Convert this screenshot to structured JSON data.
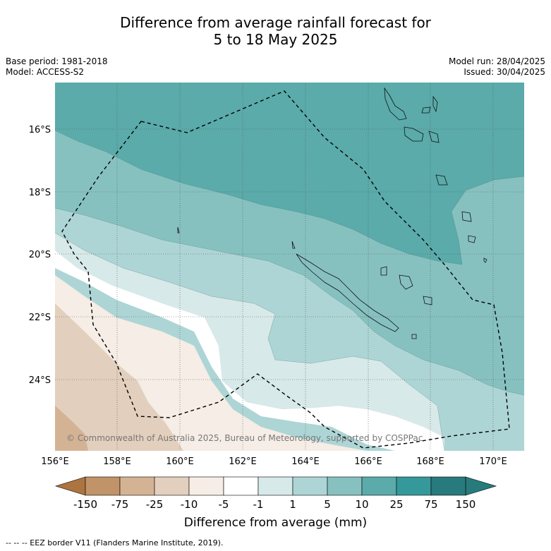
{
  "title_line1": "Difference from average rainfall forecast for",
  "title_line2": "5 to 18 May 2025",
  "meta": {
    "base_period": "Base period: 1981-2018",
    "model": "Model: ACCESS-S2",
    "model_run": "Model run: 28/04/2025",
    "issued": "Issued: 30/04/2025"
  },
  "map": {
    "lat_labels": [
      "16°S",
      "18°S",
      "20°S",
      "22°S",
      "24°S"
    ],
    "lon_labels": [
      "156°E",
      "158°E",
      "160°E",
      "162°E",
      "164°E",
      "166°E",
      "168°E",
      "170°E"
    ],
    "copyright": "© Commonwealth of Australia 2025, Bureau of Meteorology, supported by COSPPac"
  },
  "colorbar": {
    "ticks": [
      "-150",
      "-75",
      "-25",
      "-10",
      "-5",
      "-1",
      "1",
      "5",
      "10",
      "25",
      "75",
      "150"
    ],
    "colors": [
      "#ad7440",
      "#c19368",
      "#d4b394",
      "#e3cfbd",
      "#f5ede6",
      "#ffffff",
      "#d7e9e8",
      "#aed5d5",
      "#86c1c0",
      "#5aabaa",
      "#35999b",
      "#287b7c"
    ],
    "label": "Difference from average (mm)"
  },
  "footnote": "--  --  -- EEZ border V11 (Flanders Marine Institute, 2019)."
}
